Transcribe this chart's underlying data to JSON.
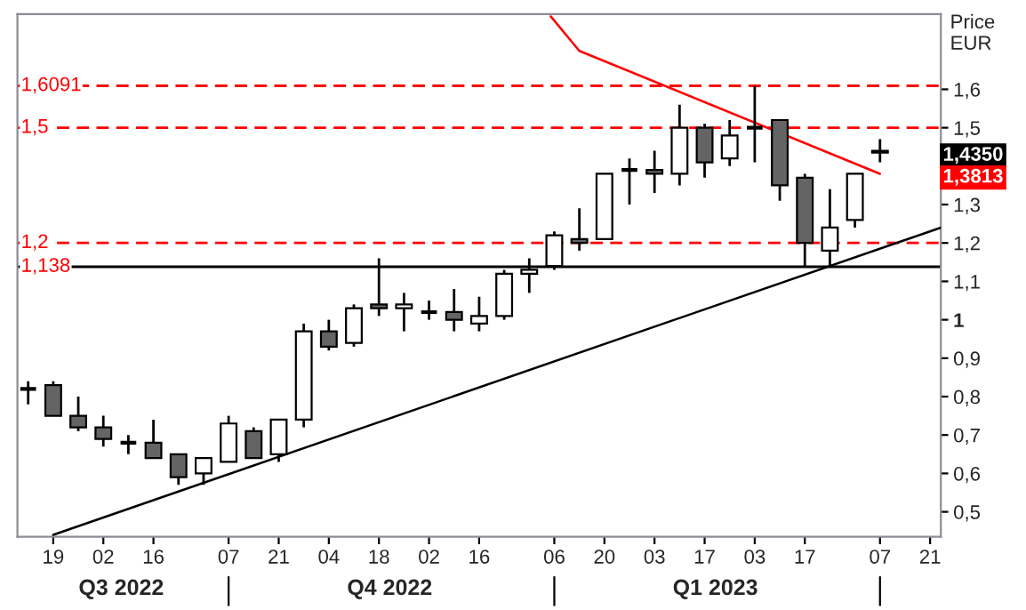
{
  "chart_data": {
    "type": "candlestick",
    "ylabel": "Price\nEUR",
    "x": [
      "2022-08-12",
      "2022-08-19",
      "2022-08-26",
      "2022-09-02",
      "2022-09-09",
      "2022-09-16",
      "2022-09-23",
      "2022-09-30",
      "2022-10-07",
      "2022-10-14",
      "2022-10-21",
      "2022-10-28",
      "2022-11-04",
      "2022-11-11",
      "2022-11-18",
      "2022-11-25",
      "2022-12-02",
      "2022-12-09",
      "2022-12-16",
      "2022-12-23",
      "2022-12-30",
      "2023-01-06",
      "2023-01-13",
      "2023-01-20",
      "2023-01-27",
      "2023-02-03",
      "2023-02-10",
      "2023-02-17",
      "2023-02-24",
      "2023-03-03",
      "2023-03-10",
      "2023-03-17",
      "2023-03-24",
      "2023-03-31",
      "2023-04-07"
    ],
    "ohlc": [
      [
        0.82,
        0.84,
        0.78,
        0.82
      ],
      [
        0.83,
        0.84,
        0.75,
        0.75
      ],
      [
        0.75,
        0.8,
        0.71,
        0.72
      ],
      [
        0.72,
        0.75,
        0.67,
        0.69
      ],
      [
        0.68,
        0.7,
        0.65,
        0.68
      ],
      [
        0.68,
        0.74,
        0.64,
        0.64
      ],
      [
        0.65,
        0.65,
        0.57,
        0.59
      ],
      [
        0.6,
        0.64,
        0.57,
        0.64
      ],
      [
        0.63,
        0.75,
        0.63,
        0.73
      ],
      [
        0.71,
        0.72,
        0.64,
        0.64
      ],
      [
        0.65,
        0.74,
        0.63,
        0.74
      ],
      [
        0.74,
        0.99,
        0.72,
        0.97
      ],
      [
        0.97,
        1.0,
        0.92,
        0.93
      ],
      [
        0.94,
        1.04,
        0.93,
        1.03
      ],
      [
        1.04,
        1.16,
        1.01,
        1.03
      ],
      [
        1.03,
        1.07,
        0.97,
        1.04
      ],
      [
        1.02,
        1.05,
        1.0,
        1.02
      ],
      [
        1.02,
        1.08,
        0.97,
        1.0
      ],
      [
        0.99,
        1.06,
        0.97,
        1.01
      ],
      [
        1.01,
        1.13,
        1.0,
        1.12
      ],
      [
        1.12,
        1.16,
        1.07,
        1.13
      ],
      [
        1.14,
        1.23,
        1.13,
        1.22
      ],
      [
        1.21,
        1.29,
        1.18,
        1.2
      ],
      [
        1.21,
        1.38,
        1.21,
        1.38
      ],
      [
        1.39,
        1.42,
        1.3,
        1.39
      ],
      [
        1.39,
        1.44,
        1.33,
        1.38
      ],
      [
        1.38,
        1.56,
        1.35,
        1.5
      ],
      [
        1.5,
        1.51,
        1.37,
        1.41
      ],
      [
        1.42,
        1.52,
        1.4,
        1.48
      ],
      [
        1.5,
        1.6091,
        1.41,
        1.5
      ],
      [
        1.52,
        1.52,
        1.31,
        1.35
      ],
      [
        1.37,
        1.38,
        1.14,
        1.2
      ],
      [
        1.18,
        1.34,
        1.14,
        1.24
      ],
      [
        1.26,
        1.38,
        1.24,
        1.38
      ],
      [
        1.44,
        1.47,
        1.41,
        1.435
      ]
    ],
    "colors": [
      "#000000",
      "#646464",
      "#646464",
      "#646464",
      "#000000",
      "#646464",
      "#646464",
      "#ffffff",
      "#ffffff",
      "#646464",
      "#ffffff",
      "#ffffff",
      "#646464",
      "#ffffff",
      "#646464",
      "#ffffff",
      "#000000",
      "#646464",
      "#ffffff",
      "#ffffff",
      "#ffffff",
      "#ffffff",
      "#646464",
      "#ffffff",
      "#000000",
      "#646464",
      "#ffffff",
      "#646464",
      "#ffffff",
      "#000000",
      "#646464",
      "#646464",
      "#ffffff",
      "#ffffff",
      "#646464"
    ],
    "series": [
      {
        "type": "line",
        "color": "#000000",
        "x": [
          "2022-08-19",
          "2023-04-24"
        ],
        "values": [
          0.44,
          1.24
        ]
      },
      {
        "type": "line",
        "color": "#ff0000",
        "x": [
          "2023-01-05",
          "2023-01-13",
          "2023-04-07"
        ],
        "values": [
          1.79,
          1.7,
          1.38
        ]
      }
    ],
    "ref_lines": [
      {
        "axis": "y",
        "value": 1.6091,
        "label": "1,6091",
        "color": "#ff0000",
        "line_style": "dashed"
      },
      {
        "axis": "y",
        "value": 1.5,
        "label": "1,5",
        "color": "#ff0000",
        "line_style": "dashed"
      },
      {
        "axis": "y",
        "value": 1.2,
        "label": "1,2",
        "color": "#ff0000",
        "line_style": "dashed"
      },
      {
        "axis": "y",
        "value": 1.138,
        "label": "1,138",
        "color": "#000000",
        "line_style": "solid"
      }
    ],
    "annotations": [
      "1,4350",
      "1,3813"
    ],
    "ylim": [
      0.435,
      1.796
    ],
    "yticks": [
      {
        "value": 0.5,
        "label": "0,5"
      },
      {
        "value": 0.6,
        "label": "0,6"
      },
      {
        "value": 0.7,
        "label": "0,7"
      },
      {
        "value": 0.8,
        "label": "0,8"
      },
      {
        "value": 0.9,
        "label": "0,9"
      },
      1,
      {
        "value": 1.1,
        "label": "1,1"
      },
      {
        "value": 1.2,
        "label": "1,2"
      },
      {
        "value": 1.3,
        "label": "1,3"
      },
      {
        "value": 1.4,
        "label": null
      },
      {
        "value": 1.5,
        "label": "1,5"
      },
      {
        "value": 1.6,
        "label": "1,6"
      }
    ],
    "xlim": [
      "2022-08-09",
      "2023-04-24"
    ],
    "xticks": [
      {
        "value": "2022-08-19",
        "label": "19"
      },
      {
        "value": "2022-09-02",
        "label": "02"
      },
      {
        "value": "2022-09-16",
        "label": "16"
      },
      {
        "value": "2022-10-07",
        "label": "07"
      },
      {
        "value": "2022-10-21",
        "label": "21"
      },
      {
        "value": "2022-11-04",
        "label": "04"
      },
      {
        "value": "2022-11-18",
        "label": "18"
      },
      {
        "value": "2022-12-02",
        "label": "02"
      },
      {
        "value": "2022-12-16",
        "label": "16"
      },
      {
        "value": "2023-01-06",
        "label": "06"
      },
      {
        "value": "2023-01-20",
        "label": "20"
      },
      {
        "value": "2023-02-03",
        "label": "03"
      },
      {
        "value": "2023-02-17",
        "label": "17"
      },
      {
        "value": "2023-03-03",
        "label": "03"
      },
      {
        "value": "2023-03-17",
        "label": "17"
      },
      {
        "value": "2023-04-07",
        "label": "07"
      },
      {
        "value": "2023-04-21",
        "label": "21"
      }
    ],
    "x2lim": [
      "2022-08-09",
      "2023-04-24"
    ],
    "x2ticks": [
      {
        "value": "2022-09-07",
        "label": "Q3 2022"
      },
      {
        "value": "2022-10-07",
        "label": null
      },
      {
        "value": "2022-11-21",
        "label": "Q4 2022"
      },
      {
        "value": "2023-01-06",
        "label": null
      },
      {
        "value": "2023-02-20",
        "label": "Q1 2023"
      },
      {
        "value": "2023-04-07",
        "label": null
      }
    ],
    "grid": false,
    "legend": false
  }
}
